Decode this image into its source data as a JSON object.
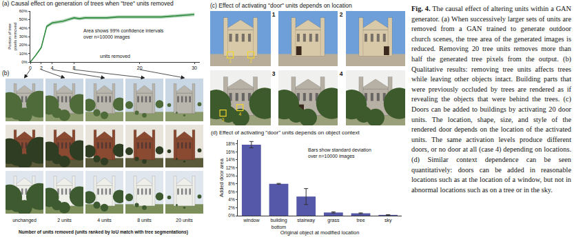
{
  "figure": {
    "label": "Fig. 4.",
    "caption": "The causal effect of altering units within a GAN generator. (a) When successively larger sets of units are removed from a GAN trained to generate outdoor church scenes, the tree area of the generated images is reduced. Removing 20 tree units removes more than half the generated tree pixels from the output. (b) Qualitative results: removing tree units affects trees while leaving other objects intact. Building parts that were previously occluded by trees are rendered as if revealing the objects that were behind the trees. (c) Doors can be added to buildings by activating 20 door units. The location, shape, size, and style of the rendered door depends on the location of the activated units. The same activation levels produce different doors, or no door at all (case 4) depending on locations. (d) Similar context dependence can be seen quantitatively: doors can be added in reasonable locations such as at the location of a window, but not in abnormal locations such as on a tree or in the sky."
  },
  "chart_data": [
    {
      "type": "line",
      "title": "(a) Causal effect on generation of trees when \"tree\" units removed",
      "x_label": "units removed",
      "y_label": "Portion of tree pixels removed",
      "x": [
        0,
        1,
        2,
        3,
        4,
        5,
        6,
        7,
        8,
        9,
        10,
        12,
        14,
        16,
        18,
        20,
        22,
        24,
        26,
        28,
        30
      ],
      "values": [
        0,
        8,
        17,
        42,
        46,
        47,
        48,
        50,
        52,
        51,
        52,
        52,
        52,
        53,
        53,
        53,
        53,
        53,
        54,
        55,
        56
      ],
      "errors": [
        0,
        1,
        1.5,
        2,
        2,
        2,
        2,
        2,
        2,
        2,
        2,
        2,
        2,
        2,
        2,
        2,
        2,
        2,
        2,
        2,
        2
      ],
      "color": "#2e8b3e",
      "annotation": "Area shows 99% confidence intervals\nover n=10000 images",
      "xlim": [
        0,
        31
      ],
      "xticks": [
        0,
        2,
        4,
        8,
        20,
        30
      ],
      "ylim": [
        0,
        60
      ],
      "yticks": [
        {
          "value": 0,
          "label": "0%"
        },
        {
          "value": 10,
          "label": "10%"
        },
        {
          "value": 20,
          "label": "20%"
        },
        {
          "value": 30,
          "label": "30%"
        },
        {
          "value": 40,
          "label": "40%"
        },
        {
          "value": 50,
          "label": "50%"
        },
        {
          "value": 60,
          "label": "60%"
        }
      ],
      "grid": false
    },
    {
      "type": "bar",
      "title": "(d) Effect of activating \"door\" units depends on object context",
      "x_label": "Original object at modified location",
      "y_label": "Added door area",
      "categories": [
        "window",
        "building bottom",
        "stairway",
        "grass",
        "tree",
        "sky"
      ],
      "values": [
        17.8,
        8.0,
        4.8,
        0.8,
        0.6,
        0.2
      ],
      "errors": [
        0.8,
        0.1,
        2.0,
        0.15,
        0.1,
        0.05
      ],
      "color": "#5558a8",
      "annotation": "Bars show standard deviation\nover n=10000 images",
      "ylim": [
        0,
        19
      ],
      "yticks": [
        {
          "value": 0,
          "label": "0%"
        },
        {
          "value": 2,
          "label": "2%"
        },
        {
          "value": 4,
          "label": "4%"
        },
        {
          "value": 6,
          "label": "6%"
        },
        {
          "value": 8,
          "label": "8%"
        },
        {
          "value": 10,
          "label": "10%"
        },
        {
          "value": 12,
          "label": "12%"
        },
        {
          "value": 14,
          "label": "14%"
        },
        {
          "value": 16,
          "label": "16%"
        },
        {
          "value": 18,
          "label": "18%"
        }
      ],
      "grid": false
    }
  ],
  "panels": {
    "b": {
      "label": "(b)",
      "columns": [
        "unchanged",
        "2 units",
        "4 units",
        "8 units",
        "20 units"
      ],
      "x_label": "Number of units removed (units ranked by IoU match with tree segmentations)"
    },
    "c": {
      "title": "(c) Effect of activating \"door\" units depends on location",
      "locations": [
        "1",
        "2",
        "3",
        "4"
      ]
    }
  }
}
